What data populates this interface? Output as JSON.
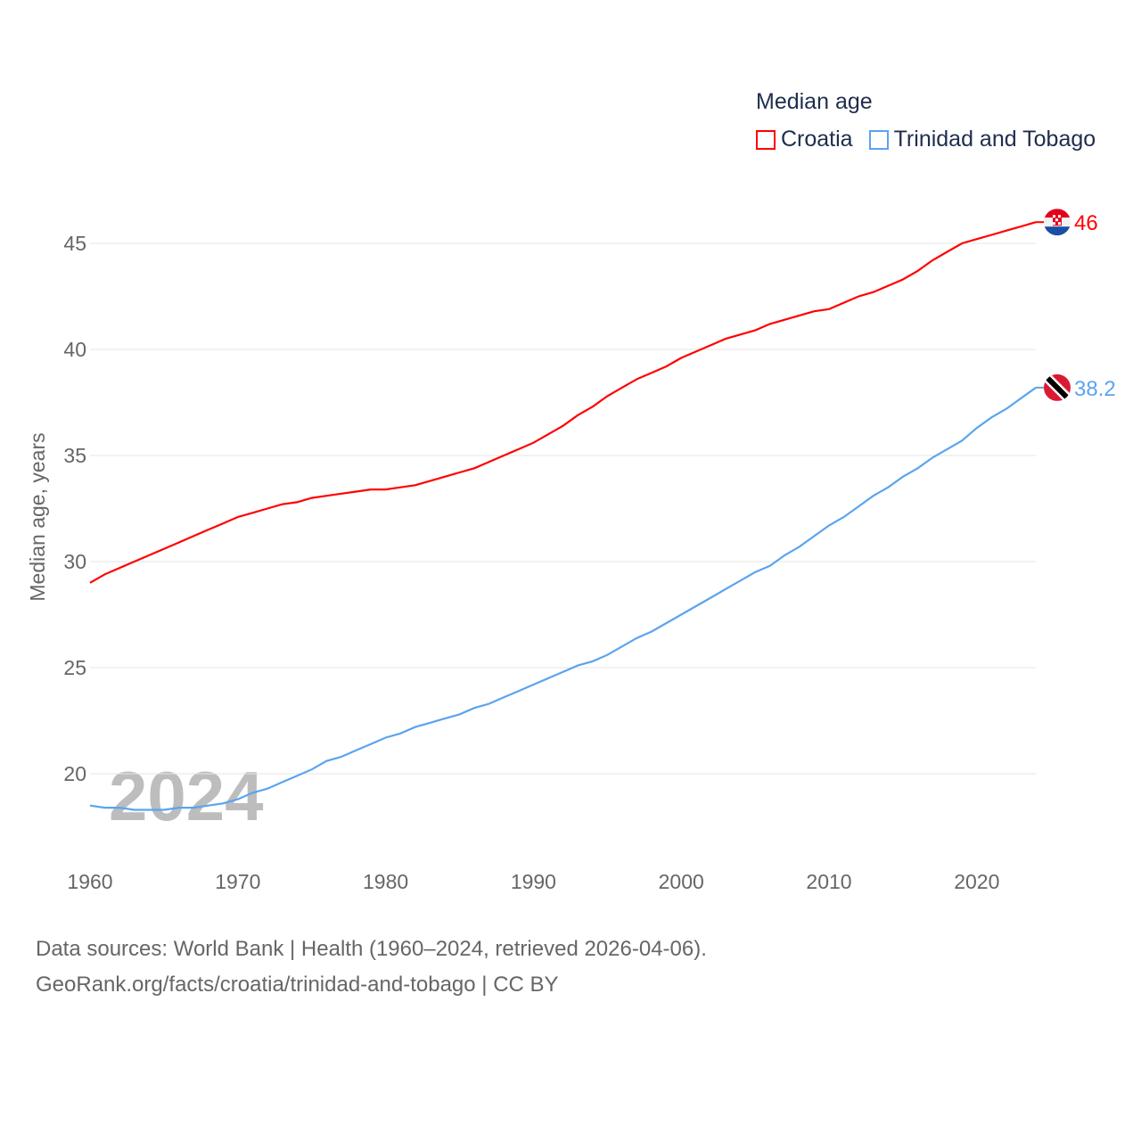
{
  "chart_data": {
    "type": "line",
    "title": "Median age",
    "xlabel": "",
    "ylabel": "Median age, years",
    "xlim": [
      1960,
      2024
    ],
    "ylim": [
      16.5,
      48
    ],
    "x_ticks": [
      1960,
      1970,
      1980,
      1990,
      2000,
      2010,
      2020
    ],
    "y_ticks": [
      20,
      25,
      30,
      35,
      40,
      45
    ],
    "grid": true,
    "legend_placement": "top-right",
    "year_watermark": "2024",
    "x": [
      1960,
      1961,
      1962,
      1963,
      1964,
      1965,
      1966,
      1967,
      1968,
      1969,
      1970,
      1971,
      1972,
      1973,
      1974,
      1975,
      1976,
      1977,
      1978,
      1979,
      1980,
      1981,
      1982,
      1983,
      1984,
      1985,
      1986,
      1987,
      1988,
      1989,
      1990,
      1991,
      1992,
      1993,
      1994,
      1995,
      1996,
      1997,
      1998,
      1999,
      2000,
      2001,
      2002,
      2003,
      2004,
      2005,
      2006,
      2007,
      2008,
      2009,
      2010,
      2011,
      2012,
      2013,
      2014,
      2015,
      2016,
      2017,
      2018,
      2019,
      2020,
      2021,
      2022,
      2023,
      2024
    ],
    "series": [
      {
        "name": "Croatia",
        "color": "#ff0000",
        "end_label": "46",
        "flag": "croatia-flag",
        "values": [
          29.0,
          29.4,
          29.7,
          30.0,
          30.3,
          30.6,
          30.9,
          31.2,
          31.5,
          31.8,
          32.1,
          32.3,
          32.5,
          32.7,
          32.8,
          33.0,
          33.1,
          33.2,
          33.3,
          33.4,
          33.4,
          33.5,
          33.6,
          33.8,
          34.0,
          34.2,
          34.4,
          34.7,
          35.0,
          35.3,
          35.6,
          36.0,
          36.4,
          36.9,
          37.3,
          37.8,
          38.2,
          38.6,
          38.9,
          39.2,
          39.6,
          39.9,
          40.2,
          40.5,
          40.7,
          40.9,
          41.2,
          41.4,
          41.6,
          41.8,
          41.9,
          42.2,
          42.5,
          42.7,
          43.0,
          43.3,
          43.7,
          44.2,
          44.6,
          45.0,
          45.2,
          45.4,
          45.6,
          45.8,
          46.0
        ]
      },
      {
        "name": "Trinidad and Tobago",
        "color": "#5ba4ee",
        "end_label": "38.2",
        "flag": "trinidad-flag",
        "values": [
          18.5,
          18.4,
          18.4,
          18.3,
          18.3,
          18.3,
          18.4,
          18.4,
          18.5,
          18.6,
          18.8,
          19.1,
          19.3,
          19.6,
          19.9,
          20.2,
          20.6,
          20.8,
          21.1,
          21.4,
          21.7,
          21.9,
          22.2,
          22.4,
          22.6,
          22.8,
          23.1,
          23.3,
          23.6,
          23.9,
          24.2,
          24.5,
          24.8,
          25.1,
          25.3,
          25.6,
          26.0,
          26.4,
          26.7,
          27.1,
          27.5,
          27.9,
          28.3,
          28.7,
          29.1,
          29.5,
          29.8,
          30.3,
          30.7,
          31.2,
          31.7,
          32.1,
          32.6,
          33.1,
          33.5,
          34.0,
          34.4,
          34.9,
          35.3,
          35.7,
          36.3,
          36.8,
          37.2,
          37.7,
          38.2
        ]
      }
    ]
  },
  "source": {
    "line1": "Data sources: World Bank | Health (1960–2024, retrieved 2026-04-06).",
    "line2": "GeoRank.org/facts/croatia/trinidad-and-tobago | CC BY"
  }
}
